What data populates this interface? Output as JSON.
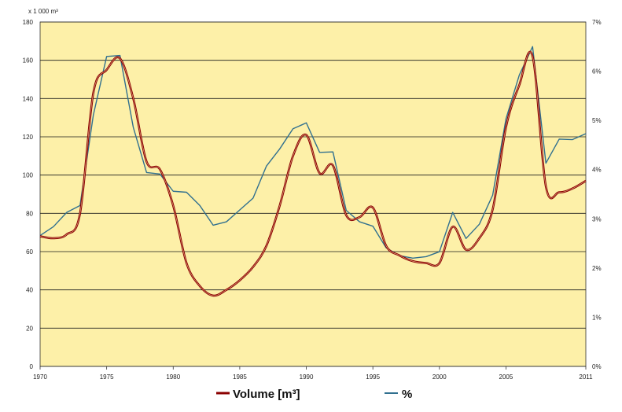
{
  "chart_data": {
    "type": "line",
    "title": "",
    "y_left_unit": "x 1 000 m³",
    "ylim_left": [
      0,
      180
    ],
    "yticks_left": [
      "0",
      "20",
      "40",
      "60",
      "80",
      "100",
      "120",
      "140",
      "160",
      "180"
    ],
    "ylim_right": [
      0,
      7
    ],
    "yticks_right": [
      "0%",
      "1%",
      "2%",
      "3%",
      "4%",
      "5%",
      "6%",
      "7%"
    ],
    "xlim": [
      1970,
      2011
    ],
    "xticks": [
      "1970",
      "1975",
      "1980",
      "1985",
      "1990",
      "1995",
      "2000",
      "2005",
      "2011"
    ],
    "grid": "horizontal",
    "legend_position": "bottom",
    "colors": {
      "plot_bg": "#FDF0A8",
      "volume": "#8B0000",
      "percent": "#31708F",
      "grid": "#1a1a1a"
    },
    "series": [
      {
        "name": "Volume [m³]",
        "axis": "left",
        "x": [
          1970,
          1971,
          1972,
          1973,
          1974,
          1975,
          1976,
          1977,
          1978,
          1979,
          1980,
          1981,
          1982,
          1983,
          1984,
          1985,
          1986,
          1987,
          1988,
          1989,
          1990,
          1991,
          1992,
          1993,
          1994,
          1995,
          1996,
          1997,
          1998,
          1999,
          2000,
          2001,
          2002,
          2003,
          2004,
          2005,
          2006,
          2007,
          2008,
          2009,
          2010,
          2011
        ],
        "values": [
          68,
          67,
          69,
          80,
          143,
          155,
          161,
          140,
          107,
          103,
          84,
          54,
          42,
          37,
          40,
          45,
          52,
          63,
          84,
          110,
          121,
          101,
          105,
          79,
          78,
          83,
          63,
          58,
          55,
          54,
          54,
          73,
          61,
          67,
          82,
          125,
          147,
          162,
          94,
          91,
          93,
          97
        ]
      },
      {
        "name": "%",
        "axis": "right",
        "x": [
          1970,
          1971,
          1972,
          1973,
          1974,
          1975,
          1976,
          1977,
          1978,
          1979,
          1980,
          1981,
          1982,
          1983,
          1984,
          1985,
          1986,
          1987,
          1988,
          1989,
          1990,
          1991,
          1992,
          1993,
          1994,
          1995,
          1996,
          1997,
          1998,
          1999,
          2000,
          2001,
          2002,
          2003,
          2004,
          2005,
          2006,
          2007,
          2008,
          2009,
          2010,
          2011
        ],
        "values": [
          2.66,
          2.84,
          3.13,
          3.27,
          5.11,
          6.3,
          6.32,
          4.86,
          3.94,
          3.91,
          3.56,
          3.54,
          3.27,
          2.87,
          2.94,
          3.18,
          3.42,
          4.07,
          4.42,
          4.83,
          4.95,
          4.35,
          4.36,
          3.17,
          2.94,
          2.85,
          2.41,
          2.25,
          2.2,
          2.23,
          2.33,
          3.13,
          2.6,
          2.89,
          3.48,
          5.03,
          5.92,
          6.5,
          4.13,
          4.62,
          4.61,
          4.73
        ]
      }
    ]
  }
}
